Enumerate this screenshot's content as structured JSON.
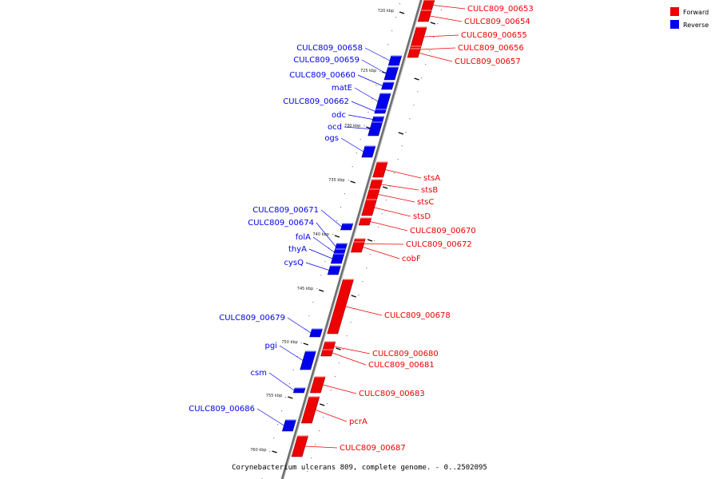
{
  "caption": "Corynebacterium ulcerans 809, complete genome. - 0..2502095",
  "legend": [
    {
      "label": "Forward",
      "color": "#ee0000"
    },
    {
      "label": "Reverse",
      "color": "#0000ee"
    }
  ],
  "ticks": [
    "720 kbp",
    "725 kbp",
    "730 kbp",
    "735 kbp",
    "740 kbp",
    "745 kbp",
    "750 kbp",
    "755 kbp",
    "760 kbp"
  ],
  "genes": [
    {
      "name": "CULC809_00653",
      "strand": "forward"
    },
    {
      "name": "CULC809_00654",
      "strand": "forward"
    },
    {
      "name": "CULC809_00655",
      "strand": "forward"
    },
    {
      "name": "CULC809_00656",
      "strand": "forward"
    },
    {
      "name": "CULC809_00657",
      "strand": "forward"
    },
    {
      "name": "CULC809_00658",
      "strand": "reverse"
    },
    {
      "name": "CULC809_00659",
      "strand": "reverse"
    },
    {
      "name": "CULC809_00660",
      "strand": "reverse"
    },
    {
      "name": "matE",
      "strand": "reverse"
    },
    {
      "name": "CULC809_00662",
      "strand": "reverse"
    },
    {
      "name": "odc",
      "strand": "reverse"
    },
    {
      "name": "ocd",
      "strand": "reverse"
    },
    {
      "name": "ogs",
      "strand": "reverse"
    },
    {
      "name": "stsA",
      "strand": "forward"
    },
    {
      "name": "stsB",
      "strand": "forward"
    },
    {
      "name": "stsC",
      "strand": "forward"
    },
    {
      "name": "stsD",
      "strand": "forward"
    },
    {
      "name": "CULC809_00670",
      "strand": "forward"
    },
    {
      "name": "CULC809_00671",
      "strand": "reverse"
    },
    {
      "name": "CULC809_00672",
      "strand": "forward"
    },
    {
      "name": "CULC809_00674",
      "strand": "reverse"
    },
    {
      "name": "folA",
      "strand": "reverse"
    },
    {
      "name": "thyA",
      "strand": "reverse"
    },
    {
      "name": "cobF",
      "strand": "forward"
    },
    {
      "name": "cysQ",
      "strand": "reverse"
    },
    {
      "name": "CULC809_00678",
      "strand": "forward"
    },
    {
      "name": "CULC809_00679",
      "strand": "reverse"
    },
    {
      "name": "CULC809_00680",
      "strand": "forward"
    },
    {
      "name": "pgi",
      "strand": "reverse"
    },
    {
      "name": "CULC809_00681",
      "strand": "forward"
    },
    {
      "name": "csm",
      "strand": "reverse"
    },
    {
      "name": "CULC809_00683",
      "strand": "forward"
    },
    {
      "name": "pcrA",
      "strand": "forward"
    },
    {
      "name": "CULC809_00686",
      "strand": "reverse"
    },
    {
      "name": "CULC809_00687",
      "strand": "forward"
    }
  ]
}
